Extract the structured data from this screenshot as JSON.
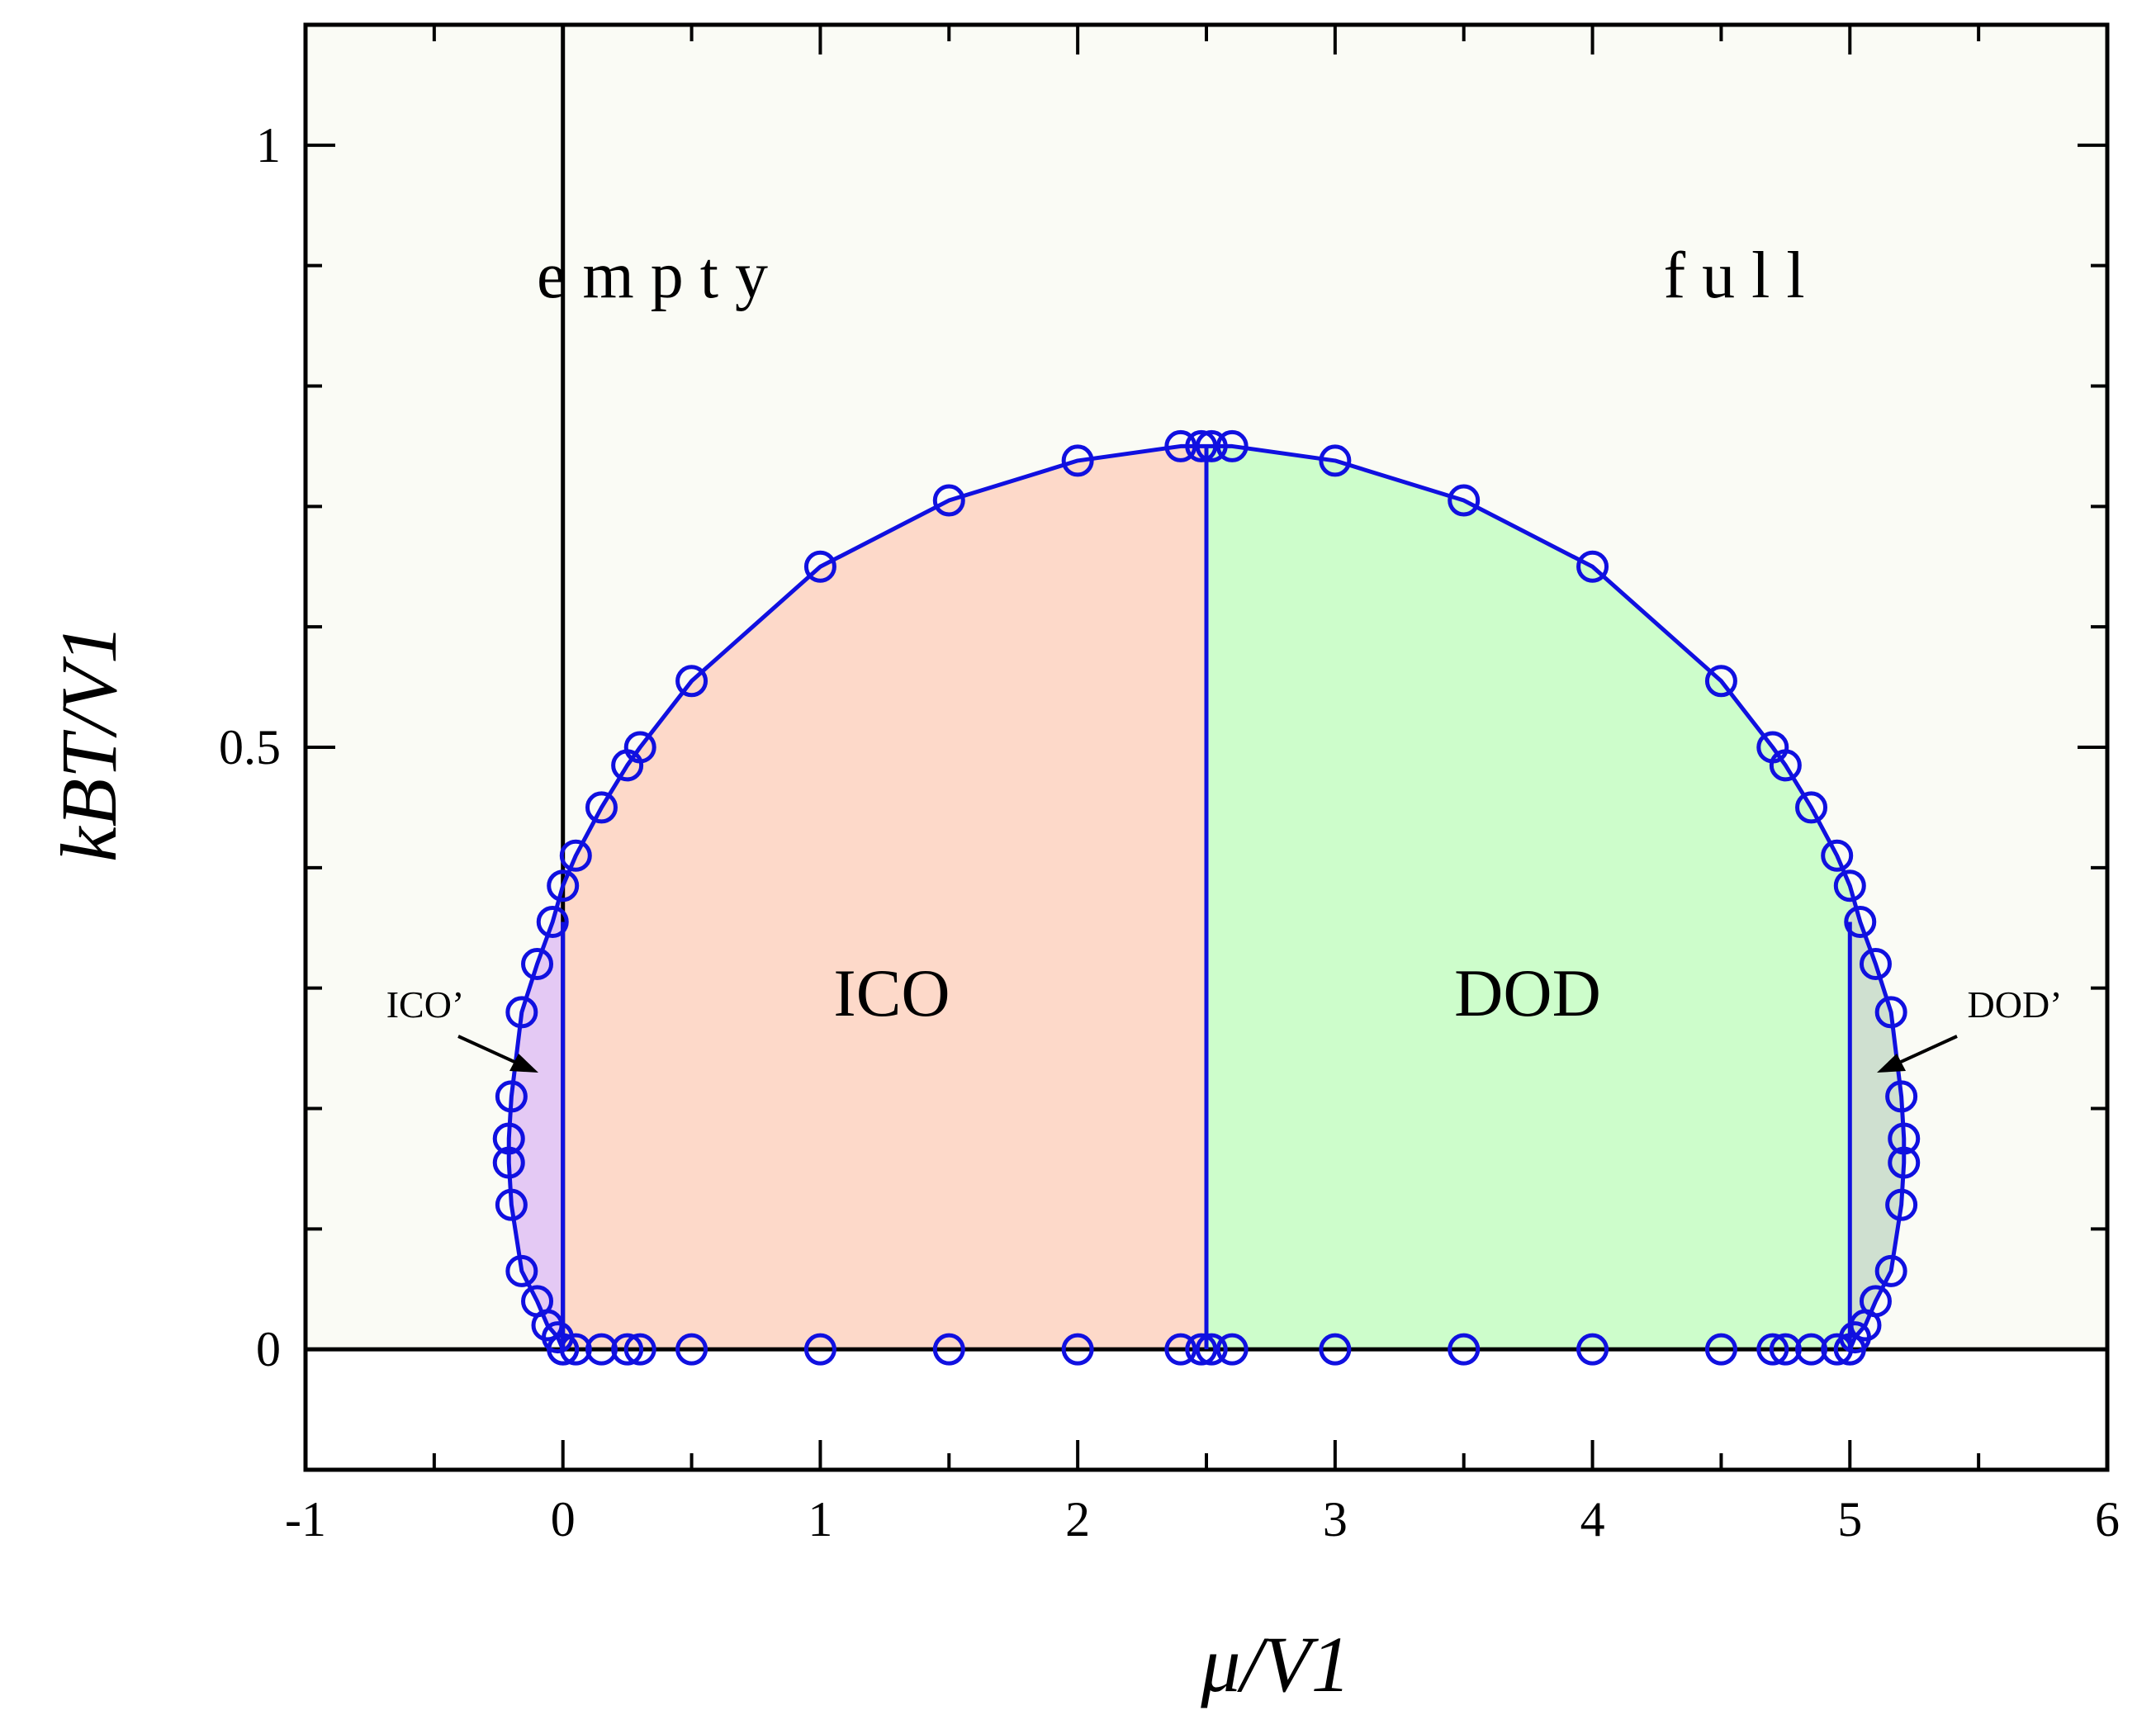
{
  "chart_data": {
    "type": "line",
    "xlabel": "μ/V1",
    "ylabel": "kBT/V1",
    "xlim": [
      -1,
      6
    ],
    "ylim": [
      -0.1,
      1.1
    ],
    "x_ticks": [
      -1,
      0,
      1,
      2,
      3,
      4,
      5,
      6
    ],
    "x_tick_labels": [
      "-1",
      "0",
      "1",
      "2",
      "3",
      "4",
      "5",
      "6"
    ],
    "y_ticks": [
      0,
      0.5,
      1
    ],
    "y_tick_labels": [
      "0",
      "0.5",
      "1"
    ],
    "grid": false,
    "colors": {
      "background": "#fafbf5",
      "boundary": "#1010e0",
      "ico": "#fdd9c9",
      "dod": "#cdfdcb",
      "ico_prime": "#e4c9f4",
      "dod_prime": "#cfe0d0",
      "axis": "#000000"
    },
    "region_labels": {
      "empty": "e m p t y",
      "full": "f u l l",
      "ico": "ICO",
      "dod": "DOD",
      "ico_prime": "ICO’",
      "dod_prime": "DOD’"
    },
    "series": [
      {
        "marker": "open-circle",
        "line": true,
        "points": [
          [
            0.0,
            0.0
          ],
          [
            -0.02,
            0.01
          ],
          [
            -0.06,
            0.02
          ],
          [
            -0.1,
            0.04
          ],
          [
            -0.16,
            0.065
          ],
          [
            -0.2,
            0.12
          ],
          [
            -0.21,
            0.155
          ],
          [
            -0.21,
            0.175
          ],
          [
            -0.2,
            0.21
          ],
          [
            -0.16,
            0.28
          ],
          [
            -0.1,
            0.32
          ],
          [
            -0.04,
            0.355
          ],
          [
            0.0,
            0.385
          ],
          [
            0.05,
            0.41
          ],
          [
            0.15,
            0.45
          ],
          [
            0.25,
            0.485
          ],
          [
            0.3,
            0.5
          ],
          [
            0.5,
            0.555
          ],
          [
            1.0,
            0.65
          ],
          [
            1.5,
            0.705
          ],
          [
            2.0,
            0.738
          ],
          [
            2.4,
            0.75
          ],
          [
            2.48,
            0.75
          ],
          [
            2.52,
            0.75
          ],
          [
            2.6,
            0.75
          ],
          [
            3.0,
            0.738
          ],
          [
            3.5,
            0.705
          ],
          [
            4.0,
            0.65
          ],
          [
            4.5,
            0.555
          ],
          [
            4.7,
            0.5
          ],
          [
            4.75,
            0.485
          ],
          [
            4.85,
            0.45
          ],
          [
            4.95,
            0.41
          ],
          [
            5.0,
            0.385
          ],
          [
            5.04,
            0.355
          ],
          [
            5.1,
            0.32
          ],
          [
            5.16,
            0.28
          ],
          [
            5.2,
            0.21
          ],
          [
            5.21,
            0.175
          ],
          [
            5.21,
            0.155
          ],
          [
            5.2,
            0.12
          ],
          [
            5.16,
            0.065
          ],
          [
            5.1,
            0.04
          ],
          [
            5.06,
            0.02
          ],
          [
            5.02,
            0.01
          ],
          [
            5.0,
            0.0
          ]
        ]
      },
      {
        "marker": "open-circle",
        "line": false,
        "points": [
          [
            0.0,
            0.0
          ],
          [
            0.05,
            0.0
          ],
          [
            0.15,
            0.0
          ],
          [
            0.25,
            0.0
          ],
          [
            0.3,
            0.0
          ],
          [
            0.5,
            0.0
          ],
          [
            1.0,
            0.0
          ],
          [
            1.5,
            0.0
          ],
          [
            2.0,
            0.0
          ],
          [
            2.4,
            0.0
          ],
          [
            2.48,
            0.0
          ],
          [
            2.52,
            0.0
          ],
          [
            2.6,
            0.0
          ],
          [
            3.0,
            0.0
          ],
          [
            3.5,
            0.0
          ],
          [
            4.0,
            0.0
          ],
          [
            4.5,
            0.0
          ],
          [
            4.7,
            0.0
          ],
          [
            4.75,
            0.0
          ],
          [
            4.85,
            0.0
          ],
          [
            4.95,
            0.0
          ],
          [
            5.0,
            0.0
          ]
        ]
      }
    ],
    "phase_lines": [
      {
        "x": [
          0,
          0
        ],
        "y": [
          0,
          1.1
        ],
        "color": "#000000"
      },
      {
        "x": [
          -1,
          6
        ],
        "y": [
          0,
          0
        ],
        "color": "#000000"
      },
      {
        "x": [
          0,
          0
        ],
        "y": [
          0,
          0.355
        ],
        "color": "#1010e0"
      },
      {
        "x": [
          2.5,
          2.5
        ],
        "y": [
          0,
          0.75
        ],
        "color": "#1010e0"
      },
      {
        "x": [
          5,
          5
        ],
        "y": [
          0,
          0.355
        ],
        "color": "#1010e0"
      }
    ]
  }
}
